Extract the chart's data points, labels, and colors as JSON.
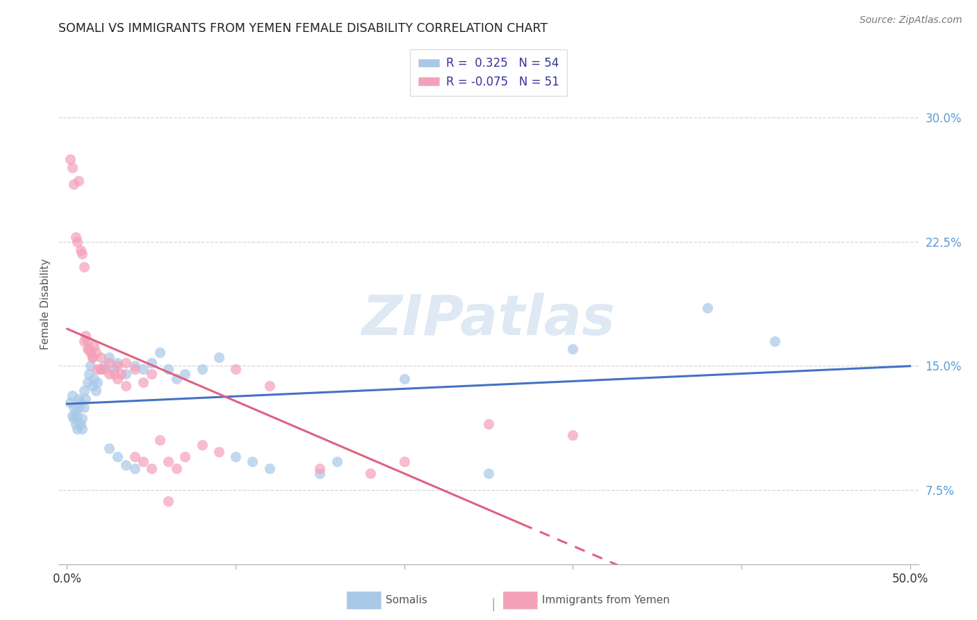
{
  "title": "SOMALI VS IMMIGRANTS FROM YEMEN FEMALE DISABILITY CORRELATION CHART",
  "source": "Source: ZipAtlas.com",
  "ylabel": "Female Disability",
  "xlim": [
    -0.005,
    0.505
  ],
  "ylim": [
    0.03,
    0.345
  ],
  "xtick_vals": [
    0.0,
    0.1,
    0.2,
    0.3,
    0.4,
    0.5
  ],
  "xtick_labels": [
    "0.0%",
    "",
    "",
    "",
    "",
    "50.0%"
  ],
  "ytick_vals": [
    0.075,
    0.15,
    0.225,
    0.3
  ],
  "ytick_labels": [
    "7.5%",
    "15.0%",
    "22.5%",
    "30.0%"
  ],
  "watermark": "ZIPatlas",
  "legend_label1": "R =  0.325   N = 54",
  "legend_label2": "R = -0.075   N = 51",
  "bottom_label1": "Somalis",
  "bottom_label2": "Immigrants from Yemen",
  "color_blue": "#a8c8e8",
  "color_pink": "#f4a0b8",
  "color_blue_line": "#4472c4",
  "color_pink_line": "#e06080",
  "color_ytick": "#5b9bd5",
  "color_xtick_edge": "#888888",
  "grid_color": "#cccccc",
  "somali_x": [
    0.002,
    0.003,
    0.003,
    0.004,
    0.004,
    0.005,
    0.005,
    0.006,
    0.006,
    0.007,
    0.007,
    0.008,
    0.008,
    0.009,
    0.009,
    0.01,
    0.01,
    0.011,
    0.012,
    0.013,
    0.014,
    0.015,
    0.016,
    0.017,
    0.018,
    0.02,
    0.022,
    0.025,
    0.028,
    0.03,
    0.035,
    0.04,
    0.045,
    0.05,
    0.055,
    0.06,
    0.065,
    0.07,
    0.08,
    0.09,
    0.1,
    0.11,
    0.12,
    0.15,
    0.16,
    0.2,
    0.25,
    0.3,
    0.38,
    0.42,
    0.025,
    0.03,
    0.035,
    0.04
  ],
  "somali_y": [
    0.128,
    0.132,
    0.12,
    0.125,
    0.118,
    0.122,
    0.115,
    0.119,
    0.112,
    0.13,
    0.125,
    0.128,
    0.115,
    0.118,
    0.112,
    0.135,
    0.125,
    0.13,
    0.14,
    0.145,
    0.15,
    0.138,
    0.142,
    0.135,
    0.14,
    0.148,
    0.15,
    0.155,
    0.148,
    0.152,
    0.145,
    0.15,
    0.148,
    0.152,
    0.158,
    0.148,
    0.142,
    0.145,
    0.148,
    0.155,
    0.095,
    0.092,
    0.088,
    0.085,
    0.092,
    0.142,
    0.085,
    0.16,
    0.185,
    0.165,
    0.1,
    0.095,
    0.09,
    0.088
  ],
  "yemen_x": [
    0.002,
    0.003,
    0.004,
    0.005,
    0.006,
    0.007,
    0.008,
    0.009,
    0.01,
    0.011,
    0.012,
    0.013,
    0.014,
    0.015,
    0.016,
    0.017,
    0.018,
    0.02,
    0.022,
    0.025,
    0.028,
    0.03,
    0.032,
    0.035,
    0.04,
    0.045,
    0.05,
    0.055,
    0.06,
    0.065,
    0.07,
    0.08,
    0.09,
    0.1,
    0.12,
    0.15,
    0.18,
    0.2,
    0.25,
    0.3,
    0.01,
    0.012,
    0.015,
    0.02,
    0.025,
    0.03,
    0.035,
    0.04,
    0.045,
    0.05,
    0.06
  ],
  "yemen_y": [
    0.275,
    0.27,
    0.26,
    0.228,
    0.225,
    0.262,
    0.22,
    0.218,
    0.21,
    0.168,
    0.165,
    0.16,
    0.158,
    0.155,
    0.162,
    0.158,
    0.148,
    0.155,
    0.148,
    0.152,
    0.145,
    0.15,
    0.145,
    0.152,
    0.148,
    0.14,
    0.145,
    0.105,
    0.092,
    0.088,
    0.095,
    0.102,
    0.098,
    0.148,
    0.138,
    0.088,
    0.085,
    0.092,
    0.115,
    0.108,
    0.165,
    0.16,
    0.155,
    0.148,
    0.145,
    0.142,
    0.138,
    0.095,
    0.092,
    0.088,
    0.068
  ]
}
